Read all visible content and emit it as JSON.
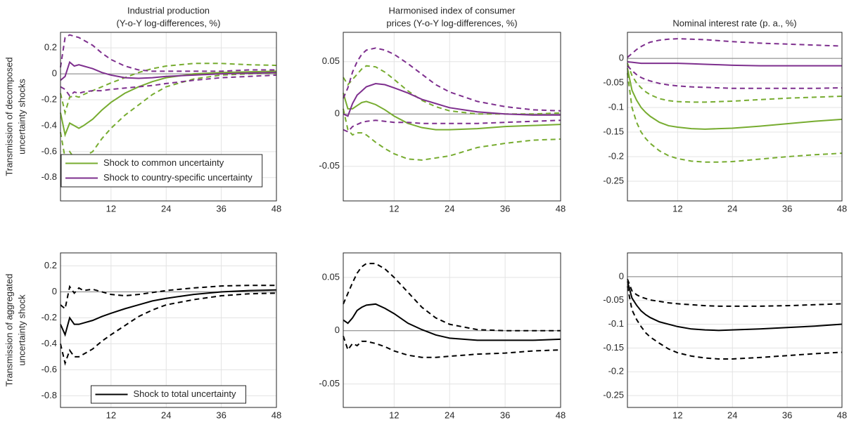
{
  "chart_data": [
    {
      "type": "line",
      "title": [
        "Industrial production",
        "(Y-o-Y log-differences, %)"
      ],
      "ylabel": [
        "Transmission of decomposed",
        "uncertainty shocks"
      ],
      "legend": "lower left",
      "x": [
        1,
        2,
        3,
        4,
        5,
        6,
        8,
        10,
        12,
        15,
        18,
        21,
        24,
        30,
        36,
        42,
        48
      ],
      "xlim": [
        1,
        48
      ],
      "xticks": [
        12,
        24,
        36,
        48
      ],
      "ylim": [
        -0.98,
        0.32
      ],
      "yticks": [
        -0.8,
        -0.6,
        -0.4,
        -0.2,
        0,
        0.2
      ],
      "grid": true,
      "series": [
        {
          "name": "Shock to common uncertainty",
          "color": "#77ac30",
          "values": [
            -0.3,
            -0.47,
            -0.38,
            -0.4,
            -0.42,
            -0.4,
            -0.35,
            -0.28,
            -0.22,
            -0.15,
            -0.1,
            -0.06,
            -0.03,
            0,
            0.01,
            0.015,
            0.02
          ],
          "lower": [
            -0.45,
            -0.65,
            -0.6,
            -0.65,
            -0.65,
            -0.64,
            -0.6,
            -0.5,
            -0.42,
            -0.32,
            -0.24,
            -0.16,
            -0.1,
            -0.04,
            -0.01,
            0,
            0.005
          ],
          "upper": [
            -0.15,
            -0.3,
            -0.18,
            -0.17,
            -0.18,
            -0.16,
            -0.13,
            -0.1,
            -0.07,
            -0.03,
            0.01,
            0.04,
            0.06,
            0.08,
            0.08,
            0.07,
            0.065
          ]
        },
        {
          "name": "Shock to country-specific uncertainty",
          "color": "#7e2f8e",
          "values": [
            -0.05,
            -0.02,
            0.09,
            0.06,
            0.07,
            0.06,
            0.04,
            0.01,
            -0.01,
            -0.03,
            -0.035,
            -0.03,
            -0.02,
            -0.01,
            0,
            0.005,
            0.01
          ],
          "lower": [
            -0.1,
            -0.12,
            -0.17,
            -0.14,
            -0.15,
            -0.14,
            -0.13,
            -0.13,
            -0.12,
            -0.11,
            -0.1,
            -0.09,
            -0.075,
            -0.05,
            -0.03,
            -0.02,
            -0.01
          ],
          "upper": [
            0.05,
            0.28,
            0.3,
            0.29,
            0.28,
            0.26,
            0.22,
            0.16,
            0.11,
            0.06,
            0.03,
            0.02,
            0.02,
            0.02,
            0.02,
            0.03,
            0.03
          ]
        }
      ]
    },
    {
      "type": "line",
      "title": [
        "Harmonised index of consumer",
        "prices (Y-o-Y log-differences, %)"
      ],
      "x": [
        1,
        2,
        3,
        4,
        5,
        6,
        8,
        10,
        12,
        15,
        18,
        21,
        24,
        30,
        36,
        42,
        48
      ],
      "xlim": [
        1,
        48
      ],
      "xticks": [
        12,
        24,
        36,
        48
      ],
      "ylim": [
        -0.083,
        0.078
      ],
      "yticks": [
        -0.05,
        0,
        0.05
      ],
      "grid": true,
      "series": [
        {
          "color": "#77ac30",
          "values": [
            0.02,
            0.005,
            0.005,
            0.008,
            0.011,
            0.012,
            0.009,
            0.004,
            -0.002,
            -0.009,
            -0.013,
            -0.015,
            -0.015,
            -0.014,
            -0.012,
            -0.011,
            -0.01
          ],
          "lower": [
            0.005,
            -0.015,
            -0.02,
            -0.018,
            -0.018,
            -0.02,
            -0.027,
            -0.033,
            -0.038,
            -0.043,
            -0.044,
            -0.042,
            -0.04,
            -0.032,
            -0.028,
            -0.025,
            -0.024
          ],
          "upper": [
            0.035,
            0.028,
            0.033,
            0.038,
            0.043,
            0.046,
            0.045,
            0.04,
            0.033,
            0.022,
            0.013,
            0.007,
            0.003,
            0,
            0,
            0,
            0.001
          ]
        },
        {
          "color": "#7e2f8e",
          "values": [
            0,
            -0.002,
            0.01,
            0.018,
            0.022,
            0.026,
            0.029,
            0.028,
            0.025,
            0.02,
            0.014,
            0.01,
            0.006,
            0.002,
            0,
            -0.001,
            -0.001
          ],
          "lower": [
            -0.015,
            -0.017,
            -0.012,
            -0.01,
            -0.008,
            -0.007,
            -0.006,
            -0.007,
            -0.008,
            -0.008,
            -0.009,
            -0.009,
            -0.009,
            -0.009,
            -0.008,
            -0.007,
            -0.006
          ],
          "upper": [
            0.015,
            0.025,
            0.04,
            0.05,
            0.057,
            0.061,
            0.063,
            0.061,
            0.057,
            0.048,
            0.038,
            0.028,
            0.021,
            0.012,
            0.007,
            0.004,
            0.003
          ]
        }
      ]
    },
    {
      "type": "line",
      "title": [
        "Nominal interest rate (p. a., %)"
      ],
      "x": [
        1,
        2,
        3,
        4,
        5,
        6,
        8,
        10,
        12,
        15,
        18,
        21,
        24,
        30,
        36,
        42,
        48
      ],
      "xlim": [
        1,
        48
      ],
      "xticks": [
        12,
        24,
        36,
        48
      ],
      "ylim": [
        -0.29,
        0.053
      ],
      "yticks": [
        -0.25,
        -0.2,
        -0.15,
        -0.1,
        -0.05,
        0
      ],
      "grid": true,
      "series": [
        {
          "color": "#77ac30",
          "values": [
            -0.02,
            -0.065,
            -0.085,
            -0.1,
            -0.11,
            -0.118,
            -0.13,
            -0.137,
            -0.14,
            -0.143,
            -0.144,
            -0.143,
            -0.142,
            -0.138,
            -0.133,
            -0.128,
            -0.124
          ],
          "lower": [
            -0.03,
            -0.1,
            -0.13,
            -0.15,
            -0.163,
            -0.173,
            -0.188,
            -0.198,
            -0.204,
            -0.209,
            -0.211,
            -0.211,
            -0.21,
            -0.205,
            -0.2,
            -0.196,
            -0.193
          ],
          "upper": [
            -0.01,
            -0.035,
            -0.05,
            -0.06,
            -0.068,
            -0.074,
            -0.082,
            -0.086,
            -0.088,
            -0.089,
            -0.089,
            -0.088,
            -0.087,
            -0.084,
            -0.081,
            -0.079,
            -0.077
          ]
        },
        {
          "color": "#7e2f8e",
          "values": [
            -0.007,
            -0.008,
            -0.009,
            -0.01,
            -0.01,
            -0.01,
            -0.01,
            -0.01,
            -0.01,
            -0.011,
            -0.012,
            -0.013,
            -0.014,
            -0.015,
            -0.015,
            -0.015,
            -0.015
          ],
          "lower": [
            -0.015,
            -0.025,
            -0.033,
            -0.039,
            -0.043,
            -0.046,
            -0.051,
            -0.054,
            -0.056,
            -0.058,
            -0.059,
            -0.06,
            -0.061,
            -0.061,
            -0.061,
            -0.061,
            -0.06
          ],
          "upper": [
            0.002,
            0.01,
            0.018,
            0.024,
            0.029,
            0.033,
            0.037,
            0.039,
            0.04,
            0.039,
            0.038,
            0.036,
            0.034,
            0.031,
            0.029,
            0.027,
            0.025
          ]
        }
      ]
    },
    {
      "type": "line",
      "ylabel": [
        "Transmission of aggregated",
        "uncertainty shock"
      ],
      "legend": "lower center",
      "x": [
        1,
        2,
        3,
        4,
        5,
        6,
        8,
        10,
        12,
        15,
        18,
        21,
        24,
        30,
        36,
        42,
        48
      ],
      "xlim": [
        1,
        48
      ],
      "xticks": [
        12,
        24,
        36,
        48
      ],
      "ylim": [
        -0.89,
        0.3
      ],
      "yticks": [
        -0.8,
        -0.6,
        -0.4,
        -0.2,
        0,
        0.2
      ],
      "grid": true,
      "series": [
        {
          "name": "Shock to total uncertainty",
          "color": "#000000",
          "values": [
            -0.25,
            -0.33,
            -0.2,
            -0.25,
            -0.25,
            -0.24,
            -0.22,
            -0.19,
            -0.165,
            -0.13,
            -0.1,
            -0.07,
            -0.05,
            -0.02,
            0,
            0.01,
            0.015
          ],
          "lower": [
            -0.4,
            -0.55,
            -0.45,
            -0.5,
            -0.5,
            -0.48,
            -0.44,
            -0.38,
            -0.33,
            -0.26,
            -0.19,
            -0.14,
            -0.1,
            -0.06,
            -0.03,
            -0.015,
            -0.01
          ],
          "upper": [
            -0.1,
            -0.13,
            0.04,
            -0.01,
            0.03,
            0.01,
            0.02,
            0,
            -0.02,
            -0.03,
            -0.02,
            -0.005,
            0.01,
            0.03,
            0.045,
            0.05,
            0.05
          ]
        }
      ]
    },
    {
      "type": "line",
      "x": [
        1,
        2,
        3,
        4,
        5,
        6,
        8,
        10,
        12,
        15,
        18,
        21,
        24,
        30,
        36,
        42,
        48
      ],
      "xlim": [
        1,
        48
      ],
      "xticks": [
        12,
        24,
        36,
        48
      ],
      "ylim": [
        -0.072,
        0.073
      ],
      "yticks": [
        -0.05,
        0,
        0.05
      ],
      "grid": true,
      "series": [
        {
          "color": "#000000",
          "values": [
            0.01,
            0.007,
            0.012,
            0.019,
            0.022,
            0.024,
            0.025,
            0.021,
            0.016,
            0.007,
            0.001,
            -0.004,
            -0.007,
            -0.009,
            -0.009,
            -0.009,
            -0.008
          ],
          "lower": [
            -0.005,
            -0.018,
            -0.012,
            -0.014,
            -0.01,
            -0.01,
            -0.012,
            -0.015,
            -0.019,
            -0.023,
            -0.025,
            -0.025,
            -0.024,
            -0.022,
            -0.021,
            -0.019,
            -0.018
          ],
          "upper": [
            0.025,
            0.035,
            0.045,
            0.054,
            0.06,
            0.063,
            0.063,
            0.058,
            0.05,
            0.036,
            0.022,
            0.012,
            0.006,
            0.001,
            0,
            0,
            0
          ]
        }
      ]
    },
    {
      "type": "line",
      "x": [
        1,
        2,
        3,
        4,
        5,
        6,
        8,
        10,
        12,
        15,
        18,
        21,
        24,
        30,
        36,
        42,
        48
      ],
      "xlim": [
        1,
        48
      ],
      "xticks": [
        12,
        24,
        36,
        48
      ],
      "ylim": [
        -0.275,
        0.05
      ],
      "yticks": [
        -0.25,
        -0.2,
        -0.15,
        -0.1,
        -0.05,
        0
      ],
      "grid": true,
      "series": [
        {
          "color": "#000000",
          "values": [
            -0.01,
            -0.045,
            -0.06,
            -0.072,
            -0.08,
            -0.086,
            -0.095,
            -0.1,
            -0.105,
            -0.11,
            -0.112,
            -0.113,
            -0.112,
            -0.11,
            -0.107,
            -0.104,
            -0.1
          ],
          "lower": [
            -0.02,
            -0.07,
            -0.09,
            -0.105,
            -0.118,
            -0.127,
            -0.14,
            -0.152,
            -0.16,
            -0.167,
            -0.171,
            -0.173,
            -0.173,
            -0.17,
            -0.166,
            -0.162,
            -0.159
          ],
          "upper": [
            -0.005,
            -0.03,
            -0.038,
            -0.043,
            -0.046,
            -0.049,
            -0.052,
            -0.055,
            -0.057,
            -0.059,
            -0.061,
            -0.062,
            -0.062,
            -0.062,
            -0.061,
            -0.059,
            -0.057
          ]
        }
      ]
    }
  ]
}
